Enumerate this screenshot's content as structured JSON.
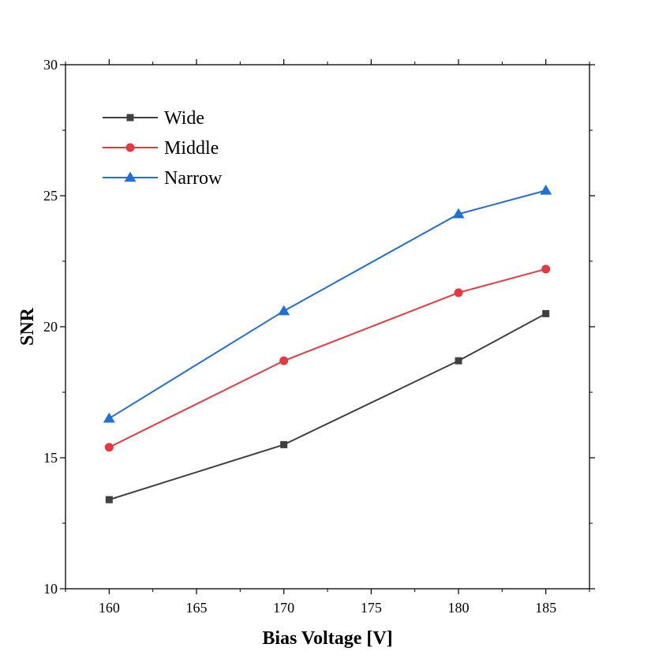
{
  "chart_data": {
    "type": "line",
    "title": "",
    "xlabel": "Bias Voltage [V]",
    "ylabel": "SNR",
    "xlim": [
      157.5,
      187.5
    ],
    "ylim": [
      10,
      30
    ],
    "xticks": [
      160,
      165,
      170,
      175,
      180,
      185
    ],
    "yticks": [
      10,
      15,
      20,
      25,
      30
    ],
    "x": [
      160,
      170,
      180,
      185
    ],
    "series": [
      {
        "name": "Wide",
        "color": "#404040",
        "marker": "square",
        "values": [
          13.4,
          15.5,
          18.7,
          20.5
        ]
      },
      {
        "name": "Middle",
        "color": "#e8383d",
        "marker": "circle",
        "values": [
          15.4,
          18.7,
          21.3,
          22.2
        ]
      },
      {
        "name": "Narrow",
        "color": "#1f6fd6",
        "marker": "triangle",
        "values": [
          16.5,
          20.6,
          24.3,
          25.2
        ]
      }
    ],
    "legend_position": "top-left",
    "grid": false
  }
}
